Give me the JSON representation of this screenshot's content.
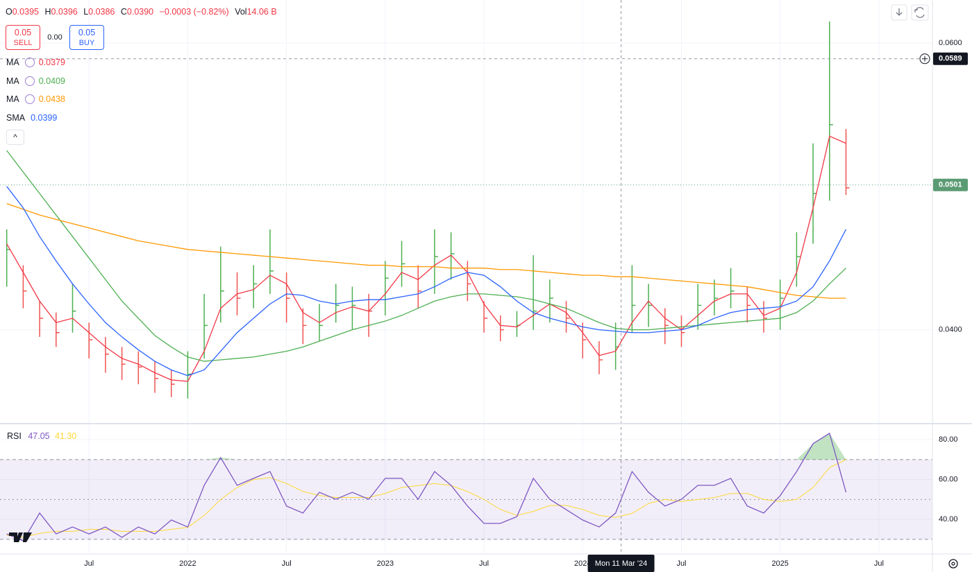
{
  "header": {
    "ohlc": [
      {
        "label": "O",
        "value": "0.0395"
      },
      {
        "label": "H",
        "value": "0.0396"
      },
      {
        "label": "L",
        "value": "0.0386"
      },
      {
        "label": "C",
        "value": "0.0390"
      }
    ],
    "change": "−0.0003 (−0.82%)",
    "volume": {
      "label": "Vol",
      "value": "14.06 B"
    }
  },
  "trade": {
    "sell_price": "0.05",
    "sell_label": "SELL",
    "spread": "0.00",
    "buy_price": "0.05",
    "buy_label": "BUY"
  },
  "chart_data": [
    {
      "type": "ohlc",
      "x": [
        "2021-02",
        "2021-03",
        "2021-04",
        "2021-05",
        "2021-06",
        "2021-07",
        "2021-08",
        "2021-09",
        "2021-10",
        "2021-11",
        "2021-12",
        "2022-01",
        "2022-02",
        "2022-03",
        "2022-04",
        "2022-05",
        "2022-06",
        "2022-07",
        "2022-08",
        "2022-09",
        "2022-10",
        "2022-11",
        "2022-12",
        "2023-01",
        "2023-02",
        "2023-03",
        "2023-04",
        "2023-05",
        "2023-06",
        "2023-07",
        "2023-08",
        "2023-09",
        "2023-10",
        "2023-11",
        "2023-12",
        "2024-01",
        "2024-02",
        "2024-03",
        "2024-04",
        "2024-05",
        "2024-06",
        "2024-07",
        "2024-08",
        "2024-09",
        "2024-10",
        "2024-11",
        "2024-12",
        "2025-01",
        "2025-02",
        "2025-03",
        "2025-04",
        "2025-05"
      ],
      "high": [
        0.047,
        0.0445,
        0.042,
        0.0412,
        0.0432,
        0.0405,
        0.0395,
        0.0388,
        0.0385,
        0.0378,
        0.0372,
        0.0385,
        0.0425,
        0.0458,
        0.044,
        0.0445,
        0.047,
        0.044,
        0.0415,
        0.0418,
        0.0432,
        0.043,
        0.0425,
        0.0448,
        0.0462,
        0.0445,
        0.047,
        0.0468,
        0.0448,
        0.042,
        0.041,
        0.0413,
        0.0452,
        0.0435,
        0.042,
        0.0405,
        0.0392,
        0.0405,
        0.0445,
        0.0432,
        0.0415,
        0.041,
        0.0432,
        0.0435,
        0.0443,
        0.043,
        0.042,
        0.0435,
        0.0468,
        0.053,
        0.0615,
        0.054
      ],
      "low": [
        0.043,
        0.0415,
        0.0395,
        0.0388,
        0.0398,
        0.038,
        0.037,
        0.0365,
        0.0362,
        0.0356,
        0.0353,
        0.0352,
        0.038,
        0.0405,
        0.041,
        0.0415,
        0.0425,
        0.0405,
        0.039,
        0.0392,
        0.0405,
        0.04,
        0.0395,
        0.041,
        0.043,
        0.0415,
        0.0425,
        0.0435,
        0.042,
        0.0398,
        0.0392,
        0.0395,
        0.04,
        0.0405,
        0.0398,
        0.038,
        0.0369,
        0.0372,
        0.0398,
        0.0402,
        0.039,
        0.0388,
        0.04,
        0.041,
        0.0415,
        0.0405,
        0.0398,
        0.04,
        0.043,
        0.046,
        0.049,
        0.0494
      ],
      "close": [
        0.0456,
        0.0427,
        0.0408,
        0.0398,
        0.0413,
        0.0393,
        0.0383,
        0.0376,
        0.0374,
        0.0366,
        0.0362,
        0.0369,
        0.0403,
        0.0427,
        0.0422,
        0.0432,
        0.0441,
        0.0422,
        0.0403,
        0.0403,
        0.0417,
        0.0417,
        0.0413,
        0.0436,
        0.0446,
        0.0427,
        0.0451,
        0.0453,
        0.0432,
        0.0408,
        0.04,
        0.0403,
        0.0413,
        0.0422,
        0.0408,
        0.0393,
        0.0379,
        0.0388,
        0.0417,
        0.0417,
        0.0403,
        0.0398,
        0.0417,
        0.0422,
        0.0427,
        0.0417,
        0.0408,
        0.0422,
        0.0451,
        0.0495,
        0.0543,
        0.0499
      ],
      "up_color": "#4caf50",
      "down_color": "#ef5350",
      "series": [
        {
          "name": "MA",
          "color": "#f23645",
          "legend_value": "0.0379",
          "values": [
            0.046,
            0.044,
            0.042,
            0.0405,
            0.0408,
            0.0398,
            0.0388,
            0.038,
            0.0376,
            0.037,
            0.0365,
            0.0364,
            0.0385,
            0.0415,
            0.0425,
            0.0428,
            0.0438,
            0.0432,
            0.0412,
            0.0405,
            0.0412,
            0.0416,
            0.0413,
            0.0425,
            0.044,
            0.0435,
            0.0445,
            0.0452,
            0.044,
            0.0418,
            0.0403,
            0.0402,
            0.041,
            0.0418,
            0.0412,
            0.0398,
            0.0382,
            0.0385,
            0.0405,
            0.042,
            0.0408,
            0.04,
            0.041,
            0.042,
            0.0425,
            0.0425,
            0.041,
            0.0415,
            0.044,
            0.0485,
            0.0535,
            0.053
          ]
        },
        {
          "name": "MA",
          "color": "#4caf50",
          "legend_value": "0.0409",
          "values": [
            0.0525,
            0.051,
            0.0495,
            0.048,
            0.0465,
            0.045,
            0.0435,
            0.042,
            0.0408,
            0.0396,
            0.0388,
            0.0381,
            0.0378,
            0.0379,
            0.038,
            0.0381,
            0.0383,
            0.0385,
            0.0388,
            0.0392,
            0.0396,
            0.04,
            0.0403,
            0.0406,
            0.041,
            0.0415,
            0.042,
            0.0423,
            0.0425,
            0.0425,
            0.0424,
            0.0423,
            0.0421,
            0.0418,
            0.0415,
            0.041,
            0.0405,
            0.0401,
            0.04,
            0.04,
            0.0401,
            0.0402,
            0.0403,
            0.0404,
            0.0405,
            0.0406,
            0.0407,
            0.0408,
            0.0412,
            0.042,
            0.0432,
            0.0443
          ]
        },
        {
          "name": "MA",
          "color": "#ff9800",
          "legend_value": "0.0438",
          "values": [
            0.0488,
            0.0484,
            0.048,
            0.0477,
            0.0474,
            0.0471,
            0.0468,
            0.0465,
            0.0462,
            0.046,
            0.0458,
            0.0456,
            0.0455,
            0.0454,
            0.0453,
            0.0452,
            0.0451,
            0.045,
            0.0449,
            0.0448,
            0.0447,
            0.0446,
            0.0445,
            0.0445,
            0.0444,
            0.0444,
            0.0444,
            0.0443,
            0.0443,
            0.0443,
            0.0442,
            0.0442,
            0.0441,
            0.044,
            0.0439,
            0.0438,
            0.0438,
            0.0437,
            0.0437,
            0.0436,
            0.0435,
            0.0434,
            0.0433,
            0.0432,
            0.0431,
            0.043,
            0.0428,
            0.0426,
            0.0424,
            0.0423,
            0.0422,
            0.0422
          ]
        },
        {
          "name": "SMA",
          "color": "#2962ff",
          "legend_value": "0.0399",
          "values": [
            0.05,
            0.0485,
            0.0465,
            0.0448,
            0.0432,
            0.0418,
            0.0405,
            0.0395,
            0.0386,
            0.0378,
            0.0372,
            0.0368,
            0.0372,
            0.0385,
            0.0398,
            0.0408,
            0.0418,
            0.0425,
            0.0424,
            0.042,
            0.0418,
            0.042,
            0.0421,
            0.0421,
            0.0423,
            0.0425,
            0.043,
            0.0436,
            0.044,
            0.0438,
            0.043,
            0.042,
            0.0412,
            0.0408,
            0.0405,
            0.0402,
            0.04,
            0.0399,
            0.0398,
            0.0398,
            0.0399,
            0.04,
            0.0403,
            0.0408,
            0.0412,
            0.0414,
            0.0415,
            0.0416,
            0.042,
            0.043,
            0.0448,
            0.047
          ]
        }
      ],
      "xlim": [
        "2021-01",
        "2025-10"
      ],
      "xticks": [
        {
          "value": "2021-07",
          "label": "Jul"
        },
        {
          "value": "2022-01",
          "label": "2022"
        },
        {
          "value": "2022-07",
          "label": "Jul"
        },
        {
          "value": "2023-01",
          "label": "2023"
        },
        {
          "value": "2023-07",
          "label": "Jul"
        },
        {
          "value": "2024-01",
          "label": "2024"
        },
        {
          "value": "2024-07",
          "label": "Jul"
        },
        {
          "value": "2025-01",
          "label": "2025"
        },
        {
          "value": "2025-07",
          "label": "Jul"
        }
      ],
      "ylim": [
        0.0335,
        0.063
      ],
      "yticks": [
        {
          "value": 0.04,
          "label": "0.0400"
        },
        {
          "value": 0.06,
          "label": "0.0600"
        }
      ],
      "grid": true,
      "last_price": 0.0501,
      "last_price_color": "#5b9b73",
      "crosshair": {
        "x": "2024-03-11",
        "x_label": "Mon 11 Mar '24",
        "y": 0.0589
      }
    },
    {
      "type": "line",
      "title": "RSI",
      "x": [
        "2021-02",
        "2021-03",
        "2021-04",
        "2021-05",
        "2021-06",
        "2021-07",
        "2021-08",
        "2021-09",
        "2021-10",
        "2021-11",
        "2021-12",
        "2022-01",
        "2022-02",
        "2022-03",
        "2022-04",
        "2022-05",
        "2022-06",
        "2022-07",
        "2022-08",
        "2022-09",
        "2022-10",
        "2022-11",
        "2022-12",
        "2023-01",
        "2023-02",
        "2023-03",
        "2023-04",
        "2023-05",
        "2023-06",
        "2023-07",
        "2023-08",
        "2023-09",
        "2023-10",
        "2023-11",
        "2023-12",
        "2024-01",
        "2024-02",
        "2024-03",
        "2024-04",
        "2024-05",
        "2024-06",
        "2024-07",
        "2024-08",
        "2024-09",
        "2024-10",
        "2024-11",
        "2024-12",
        "2025-01",
        "2025-02",
        "2025-03",
        "2025-04",
        "2025-05"
      ],
      "series": [
        {
          "color": "#7e57c2",
          "legend_value": "47.05",
          "values": [
            32.7,
            29.3,
            43.2,
            32.7,
            36.2,
            32.7,
            36.2,
            31,
            36.2,
            32.7,
            39.7,
            36.2,
            57.1,
            71,
            57.1,
            60.6,
            64,
            46.7,
            43.2,
            53.6,
            50.1,
            53.6,
            50.1,
            60.6,
            60.6,
            50.1,
            64,
            57.1,
            46.7,
            38,
            38,
            41.4,
            60.6,
            50.1,
            44.9,
            39.7,
            36.2,
            43.2,
            64,
            53.6,
            46.7,
            50.1,
            57.1,
            57.1,
            60.6,
            46.7,
            43.2,
            51.9,
            64,
            78,
            83.2,
            53.6
          ]
        },
        {
          "color": "#fdd835",
          "legend_value": "41.30",
          "values": [
            32,
            31,
            33,
            34,
            34,
            35,
            35,
            34,
            34,
            34,
            35,
            36,
            42,
            50,
            56,
            60,
            61,
            58,
            54,
            52,
            51,
            51,
            51,
            53,
            56,
            57,
            58,
            57,
            54,
            50,
            45,
            42,
            44,
            47,
            47,
            45,
            42,
            41,
            43,
            48,
            50,
            49,
            50,
            51,
            53,
            53,
            50,
            49,
            50,
            56,
            66,
            70
          ]
        }
      ],
      "ylim": [
        23,
        87.7
      ],
      "yticks": [
        {
          "value": 40,
          "label": "40.00"
        },
        {
          "value": 60,
          "label": "60.00"
        },
        {
          "value": 80,
          "label": "80.00"
        }
      ],
      "bands": [
        30,
        50,
        70
      ],
      "band_fill": "#7e57c2",
      "overbought_fill": "#4caf50"
    }
  ]
}
